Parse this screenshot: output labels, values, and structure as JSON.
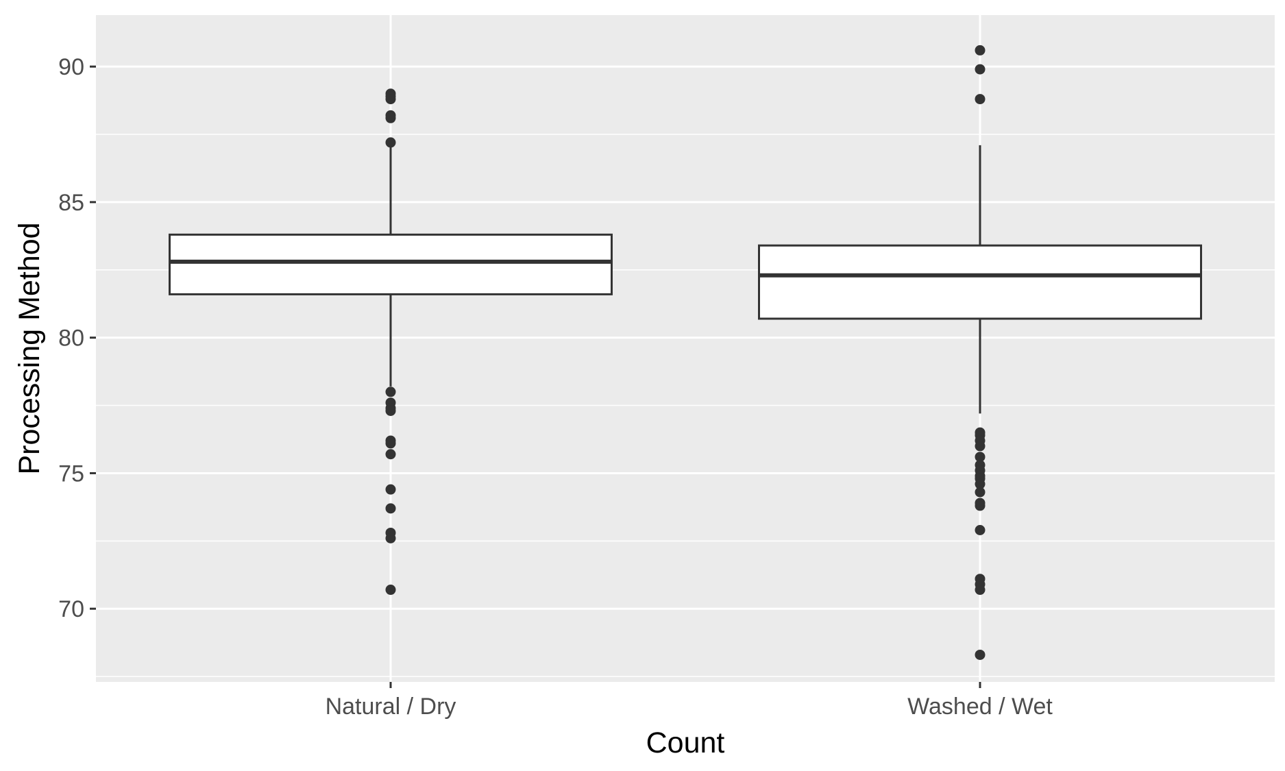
{
  "chart_data": {
    "type": "boxplot",
    "xlabel": "Count",
    "ylabel": "Processing Method",
    "categories": [
      "Natural / Dry",
      "Washed / Wet"
    ],
    "ylim": [
      67.3,
      91.9
    ],
    "y_ticks": [
      70,
      75,
      80,
      85,
      90
    ],
    "grid": true,
    "legend": "none",
    "boxes": [
      {
        "category": "Natural / Dry",
        "whisker_low": 78.2,
        "q1": 81.6,
        "median": 82.8,
        "q3": 83.8,
        "whisker_high": 87.2,
        "outliers": [
          89.0,
          88.9,
          88.8,
          88.2,
          88.1,
          87.2,
          78.0,
          77.6,
          77.4,
          77.3,
          76.2,
          76.1,
          75.7,
          74.4,
          73.7,
          72.8,
          72.6,
          70.7
        ]
      },
      {
        "category": "Washed / Wet",
        "whisker_low": 77.2,
        "q1": 80.7,
        "median": 82.3,
        "q3": 83.4,
        "whisker_high": 87.1,
        "outliers": [
          90.6,
          89.9,
          88.8,
          76.5,
          76.4,
          76.2,
          76.0,
          75.6,
          75.3,
          75.1,
          74.9,
          74.8,
          74.6,
          74.3,
          73.9,
          73.8,
          72.9,
          71.1,
          70.9,
          70.7,
          68.3
        ]
      }
    ],
    "colors": {
      "panel_background": "#ebebeb",
      "grid_major": "#ffffff",
      "box_fill": "#ffffff",
      "box_stroke": "#333333",
      "tick_label": "#4d4d4d",
      "axis_title": "#000000",
      "outlier": "#333333"
    }
  }
}
